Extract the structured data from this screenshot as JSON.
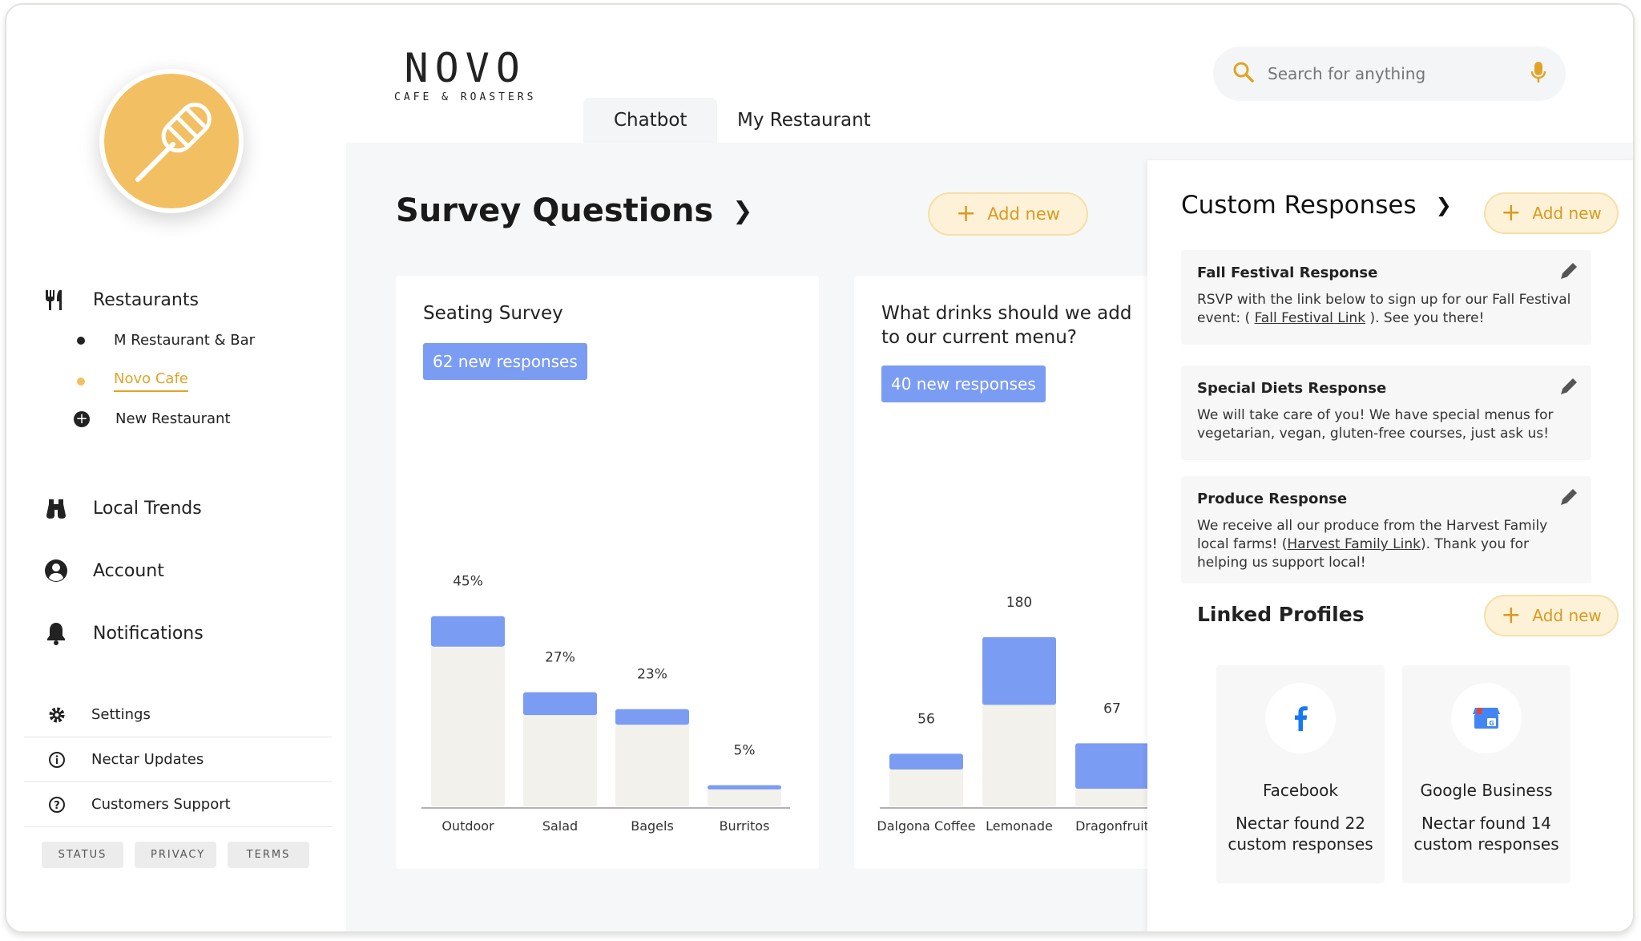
{
  "brand": {
    "name": "NOVO",
    "tagline": "CAFE & ROASTERS"
  },
  "tabs": [
    {
      "label": "Chatbot",
      "active": true
    },
    {
      "label": "My Restaurant",
      "active": false
    }
  ],
  "search": {
    "placeholder": "Search for anything"
  },
  "sidebar": {
    "restaurants_label": "Restaurants",
    "restaurants": [
      {
        "label": "M Restaurant & Bar",
        "active": false
      },
      {
        "label": "Novo Cafe",
        "active": true
      }
    ],
    "new_restaurant_label": "New Restaurant",
    "local_trends_label": "Local Trends",
    "account_label": "Account",
    "notifications_label": "Notifications",
    "settings_items": [
      {
        "label": "Settings",
        "icon": "gear-icon"
      },
      {
        "label": "Nectar Updates",
        "icon": "info-icon"
      },
      {
        "label": "Customers Support",
        "icon": "help-icon"
      }
    ],
    "footer_links": [
      "STATUS",
      "PRIVACY",
      "TERMS"
    ]
  },
  "survey": {
    "title": "Survey Questions",
    "add_label": "Add new",
    "cards": [
      {
        "title": "Seating Survey",
        "badge": "62 new responses"
      },
      {
        "title": "What drinks should we add to our current menu?",
        "badge": "40 new responses"
      }
    ]
  },
  "chart_data": [
    {
      "type": "bar",
      "title": "Seating Survey",
      "categories": [
        "Outdoor",
        "Salad",
        "Bagels",
        "Burritos"
      ],
      "values": [
        45,
        27,
        23,
        5
      ],
      "labels": [
        "45%",
        "27%",
        "23%",
        "5%"
      ],
      "new_fraction": [
        0.16,
        0.2,
        0.16,
        0.2
      ],
      "ymax": 55
    },
    {
      "type": "bar",
      "title": "What drinks should we add to our current menu?",
      "categories": [
        "Dalgona Coffee",
        "Lemonade",
        "Dragonfruit"
      ],
      "values": [
        56,
        180,
        67
      ],
      "labels": [
        "56",
        "180",
        "67"
      ],
      "new_fraction": [
        0.3,
        0.4,
        0.72
      ],
      "ymax": 220
    }
  ],
  "custom": {
    "title": "Custom Responses",
    "add_label": "Add new",
    "responses": [
      {
        "title": "Fall Festival Response",
        "pre": "RSVP with the link below to sign up for our Fall Festival event: ( ",
        "link": "Fall Festival Link",
        "post": " ). See you there!"
      },
      {
        "title": "Special Diets Response",
        "pre": "We will take care of you! We have special menus for vegetarian, vegan, gluten-free courses, just ask us!",
        "link": "",
        "post": ""
      },
      {
        "title": "Produce Response",
        "pre": "We receive all our produce from the Harvest Family local farms! (",
        "link": "Harvest Family Link",
        "post": "). Thank you for helping us support local!"
      }
    ]
  },
  "linked": {
    "title": "Linked Profiles",
    "add_label": "Add new",
    "profiles": [
      {
        "name": "Facebook",
        "desc": "Nectar found 22 custom responses",
        "icon": "facebook-icon"
      },
      {
        "name": "Google Business",
        "desc": "Nectar found 14 custom responses",
        "icon": "google-business-icon"
      }
    ]
  },
  "colors": {
    "accent": "#f2c063",
    "accent_text": "#e0a427",
    "bar_new": "#7b9cf3",
    "bar_base": "#f2f1ec",
    "badge": "#7b9cf3"
  }
}
